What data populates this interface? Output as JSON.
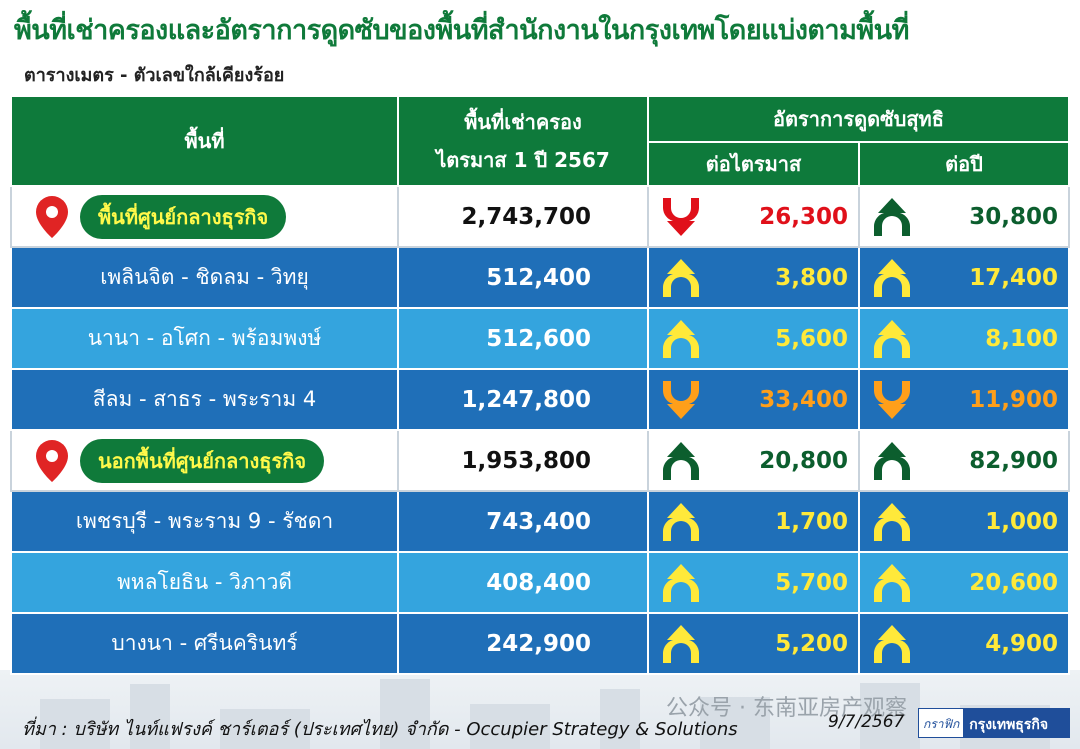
{
  "title": "พื้นที่เช่าครองและอัตราการดูดซับของพื้นที่สำนักงานในกรุงเทพโดยแบ่งตามพื้นที่",
  "subtitle": "ตารางเมตร - ตัวเลขใกล้เคียงร้อย",
  "header": {
    "area": "พื้นที่",
    "occupied": "พื้นที่เช่าครอง",
    "occupied_period": "ไตรมาส 1 ปี 2567",
    "absorption": "อัตราการดูดซับสุทธิ",
    "per_quarter": "ต่อไตรมาส",
    "per_year": "ต่อปี"
  },
  "colors": {
    "header_green": "#0e7a3b",
    "row_dark_blue": "#1f6fb8",
    "row_light_blue": "#34a4de",
    "up_yellow": "#ffe93a",
    "down_orange": "#ff9f1a",
    "total_up_green": "#0c5e2e",
    "total_down_red": "#e0101a",
    "pill_text": "#fff94a"
  },
  "rows": [
    {
      "name": "พื้นที่ศูนย์กลางธุรกิจ",
      "kind": "total",
      "occupied": "2,743,700",
      "quarter": {
        "value": "26,300",
        "dir": "down"
      },
      "year": {
        "value": "30,800",
        "dir": "up"
      }
    },
    {
      "name": "เพลินจิต - ชิดลม - วิทยุ",
      "kind": "dark",
      "occupied": "512,400",
      "quarter": {
        "value": "3,800",
        "dir": "up"
      },
      "year": {
        "value": "17,400",
        "dir": "up"
      }
    },
    {
      "name": "นานา - อโศก - พร้อมพงษ์",
      "kind": "light",
      "occupied": "512,600",
      "quarter": {
        "value": "5,600",
        "dir": "up"
      },
      "year": {
        "value": "8,100",
        "dir": "up"
      }
    },
    {
      "name": "สีลม - สาธร - พระราม 4",
      "kind": "dark",
      "occupied": "1,247,800",
      "quarter": {
        "value": "33,400",
        "dir": "down"
      },
      "year": {
        "value": "11,900",
        "dir": "down"
      }
    },
    {
      "name": "นอกพื้นที่ศูนย์กลางธุรกิจ",
      "kind": "total",
      "occupied": "1,953,800",
      "quarter": {
        "value": "20,800",
        "dir": "up"
      },
      "year": {
        "value": "82,900",
        "dir": "up"
      }
    },
    {
      "name": "เพชรบุรี - พระราม 9 - รัชดา",
      "kind": "dark",
      "occupied": "743,400",
      "quarter": {
        "value": "1,700",
        "dir": "up"
      },
      "year": {
        "value": "1,000",
        "dir": "up"
      }
    },
    {
      "name": "พหลโยธิน - วิภาวดี",
      "kind": "light",
      "occupied": "408,400",
      "quarter": {
        "value": "5,700",
        "dir": "up"
      },
      "year": {
        "value": "20,600",
        "dir": "up"
      }
    },
    {
      "name": "บางนา - ศรีนครินทร์",
      "kind": "dark",
      "occupied": "242,900",
      "quarter": {
        "value": "5,200",
        "dir": "up"
      },
      "year": {
        "value": "4,900",
        "dir": "up"
      }
    }
  ],
  "chart_data": {
    "type": "table",
    "title": "พื้นที่เช่าครองและอัตราการดูดซับของพื้นที่สำนักงานในกรุงเทพโดยแบ่งตามพื้นที่",
    "subtitle": "ตารางเมตร - ตัวเลขใกล้เคียงร้อย",
    "columns": [
      "พื้นที่",
      "พื้นที่เช่าครอง ไตรมาส 1 ปี 2567",
      "อัตราการดูดซับสุทธิ ต่อไตรมาส",
      "อัตราการดูดซับสุทธิ ต่อปี"
    ],
    "categories": [
      "พื้นที่ศูนย์กลางธุรกิจ",
      "เพลินจิต - ชิดลม - วิทยุ",
      "นานา - อโศก - พร้อมพงษ์",
      "สีลม - สาธร - พระราม 4",
      "นอกพื้นที่ศูนย์กลางธุรกิจ",
      "เพชรบุรี - พระราม 9 - รัชดา",
      "พหลโยธิน - วิภาวดี",
      "บางนา - ศรีนครินทร์"
    ],
    "series": [
      {
        "name": "พื้นที่เช่าครอง",
        "values": [
          2743700,
          512400,
          512600,
          1247800,
          1953800,
          743400,
          408400,
          242900
        ]
      },
      {
        "name": "ต่อไตรมาส",
        "values": [
          -26300,
          3800,
          5600,
          -33400,
          20800,
          1700,
          5700,
          5200
        ]
      },
      {
        "name": "ต่อปี",
        "values": [
          30800,
          17400,
          8100,
          -11900,
          82900,
          1000,
          20600,
          4900
        ]
      }
    ]
  },
  "footer": {
    "source": "ที่มา : บริษัท ไนท์แฟรงค์ ชาร์เตอร์ (ประเทศไทย) จำกัด - Occupier Strategy & Solutions",
    "date": "9/7/2567",
    "logo_graphic": "กราฟิก",
    "logo_brand": "กรุงเทพธุรกิจ",
    "watermark": "公众号 · 东南亚房产观察"
  }
}
